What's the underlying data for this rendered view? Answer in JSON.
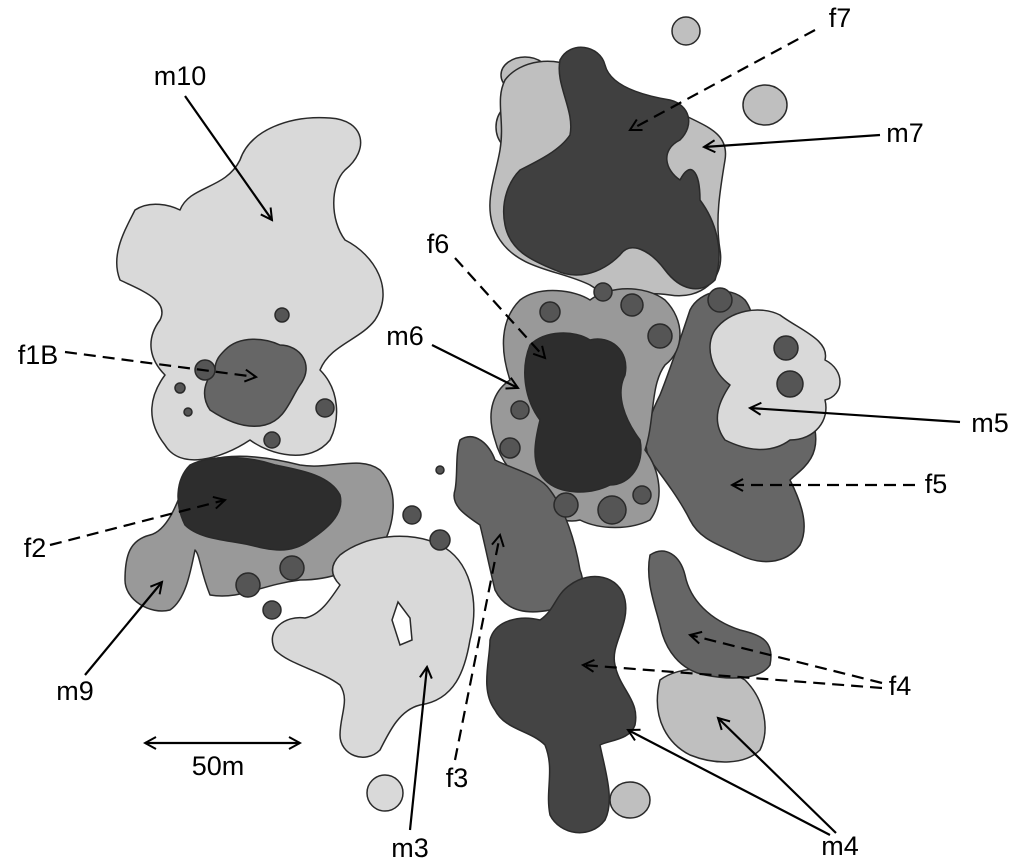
{
  "labels": {
    "m10": "m10",
    "f7": "f7",
    "m7": "m7",
    "f6": "f6",
    "m6": "m6",
    "f1B": "f1B",
    "m5": "m5",
    "f5": "f5",
    "f2": "f2",
    "m9": "m9",
    "m3": "m3",
    "f3": "f3",
    "f4": "f4",
    "m4": "m4"
  },
  "scale_bar": "50m"
}
